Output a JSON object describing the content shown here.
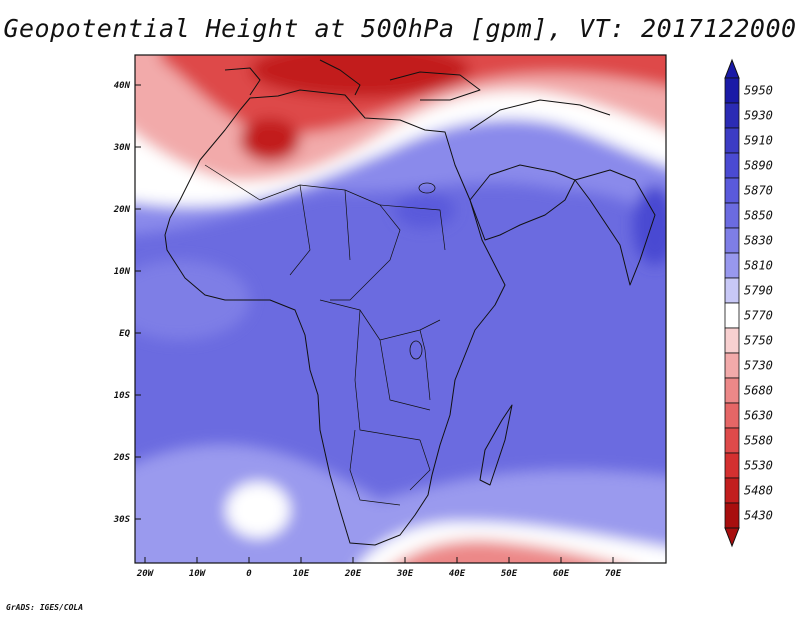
{
  "title": "Geopotential Height at 500hPa [gpm], VT: 2017122000",
  "credit": "GrADS: IGES/COLA",
  "map": {
    "lat_labels": [
      "40N",
      "30N",
      "20N",
      "10N",
      "EQ",
      "10S",
      "20S",
      "30S"
    ],
    "lon_labels": [
      "20W",
      "10W",
      "0",
      "10E",
      "20E",
      "30E",
      "40E",
      "50E",
      "60E",
      "70E"
    ]
  },
  "colorbar": {
    "levels": [
      "5950",
      "5930",
      "5910",
      "5890",
      "5870",
      "5850",
      "5830",
      "5810",
      "5790",
      "5770",
      "5750",
      "5730",
      "5680",
      "5630",
      "5580",
      "5530",
      "5480",
      "5430"
    ],
    "colors": [
      "#1a1aa6",
      "#2b2bb4",
      "#3c3cc4",
      "#4a4ad2",
      "#5a5adb",
      "#6b6be0",
      "#7e7ee6",
      "#9898ee",
      "#c8c8f6",
      "#ffffff",
      "#f8d0d0",
      "#f2aaaa",
      "#ec8888",
      "#e56666",
      "#de4a4a",
      "#d43030",
      "#c21e1e",
      "#a80e0e"
    ],
    "top_arrow_color": "#1a1aa6",
    "bottom_arrow_color": "#a80e0e"
  },
  "palette": {
    "ocean_base": "#6b6be0",
    "subtropical_blue": "#8a8aeb",
    "band_white": "#ffffff",
    "light_red": "#f2aaaa",
    "red": "#de4a4a",
    "deep_red": "#c21e1e",
    "high_blue": "#4a4ad2"
  }
}
